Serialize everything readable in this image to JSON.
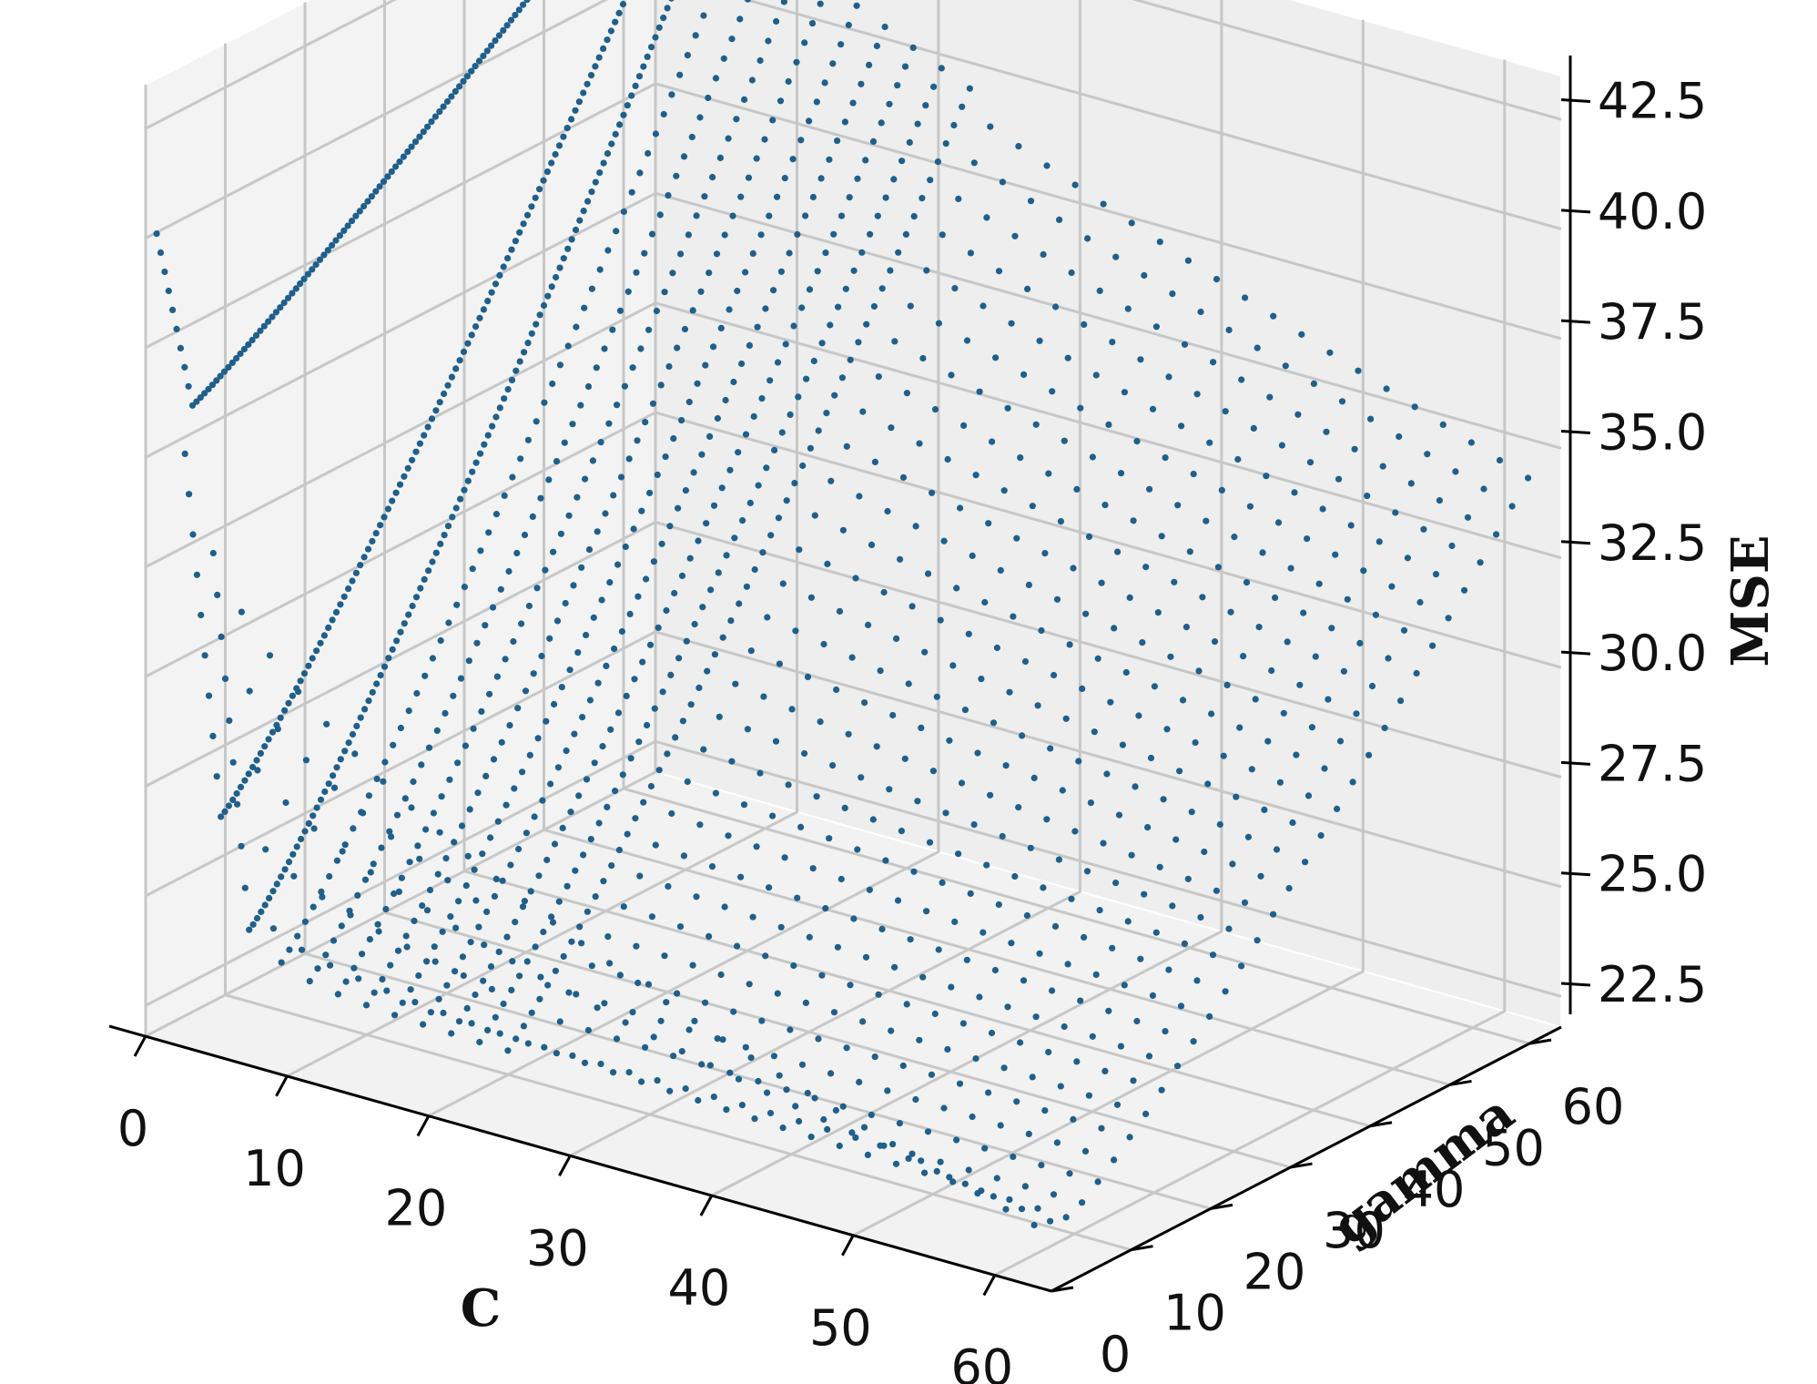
{
  "chart_data": {
    "type": "scatter",
    "projection": "3d",
    "marker_color": "#1f5f8b",
    "pane_color": "#f2f2f2",
    "grid": true,
    "axes": {
      "x": {
        "label": "C",
        "ticks": [
          "0",
          "10",
          "20",
          "30",
          "40",
          "50",
          "60"
        ],
        "range": [
          0,
          64
        ]
      },
      "y": {
        "label": "gamma",
        "ticks": [
          "0",
          "10",
          "20",
          "30",
          "40",
          "50",
          "60"
        ],
        "range": [
          0,
          64
        ]
      },
      "z": {
        "label": "MSE",
        "ticks": [
          "22.5",
          "25.0",
          "27.5",
          "30.0",
          "32.5",
          "35.0",
          "37.5",
          "40.0",
          "42.5"
        ],
        "range": [
          21.8,
          43.5
        ]
      }
    },
    "surface": {
      "description": "MSE grid over C and gamma",
      "C_min": 0.5,
      "C_max": 64,
      "gamma_min": 0.5,
      "gamma_max": 64,
      "MSE_min": 22.5,
      "MSE_max": 43.5,
      "corner_values": {
        "C_low_gamma_low": 40.6,
        "C_low_gamma_high": 43.5,
        "C_high_gamma_low": 23.0,
        "C_high_gamma_high": 34.5
      },
      "valley_gamma": 5
    }
  }
}
